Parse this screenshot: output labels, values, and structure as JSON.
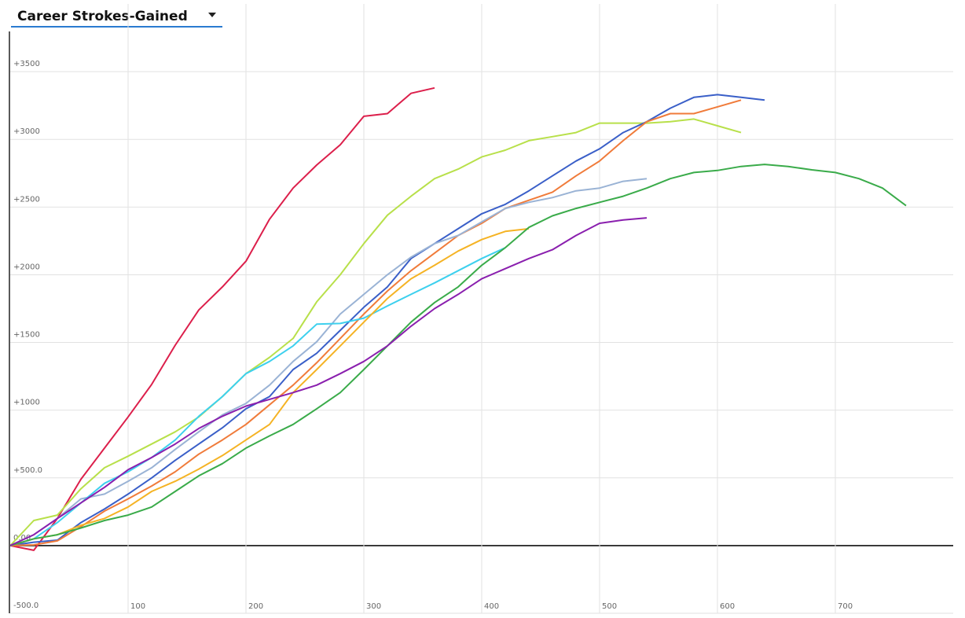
{
  "chart_data": {
    "type": "line",
    "title": "Career Strokes-Gained",
    "xlim": [
      0,
      800
    ],
    "ylim": [
      -500,
      4000
    ],
    "xticks": [
      100,
      200,
      300,
      400,
      500,
      600,
      700
    ],
    "yticks": [
      {
        "value": -500,
        "label": "-500.0"
      },
      {
        "value": 0,
        "label": "0.00"
      },
      {
        "value": 500,
        "label": "+500.0"
      },
      {
        "value": 1000,
        "label": "+1000"
      },
      {
        "value": 1500,
        "label": "+1500"
      },
      {
        "value": 2000,
        "label": "+2000"
      },
      {
        "value": 2500,
        "label": "+2500"
      },
      {
        "value": 3000,
        "label": "+3000"
      },
      {
        "value": 3500,
        "label": "+3500"
      }
    ],
    "grid": true,
    "x": [
      0,
      20,
      40,
      60,
      80,
      100,
      120,
      140,
      160,
      180,
      200,
      220,
      240,
      260,
      280,
      300,
      320,
      340,
      360,
      380,
      400,
      420,
      440,
      460,
      480,
      500,
      520,
      540,
      560,
      580,
      600,
      620,
      640,
      660,
      680,
      700,
      720,
      740,
      760
    ],
    "series": [
      {
        "color": "#dc1f4b",
        "values": [
          0,
          -35,
          200,
          490,
          720,
          950,
          1190,
          1480,
          1740,
          1910,
          2100,
          2410,
          2640,
          2810,
          2960,
          3170,
          3190,
          3340,
          3380,
          null,
          null,
          null,
          null,
          null,
          null,
          null,
          null,
          null,
          null,
          null,
          null,
          null,
          null,
          null,
          null,
          null,
          null,
          null,
          null
        ]
      },
      {
        "color": "#b8e04a",
        "values": [
          0,
          185,
          225,
          420,
          575,
          660,
          750,
          840,
          950,
          1100,
          1270,
          1390,
          1530,
          1800,
          2000,
          2230,
          2440,
          2580,
          2710,
          2780,
          2870,
          2920,
          2990,
          3020,
          3050,
          3120,
          3120,
          3120,
          3130,
          3150,
          3100,
          3050,
          null,
          null,
          null,
          null,
          null,
          null,
          null
        ]
      },
      {
        "color": "#3a5fc8",
        "values": [
          0,
          25,
          40,
          170,
          270,
          380,
          500,
          630,
          750,
          870,
          1010,
          1100,
          1300,
          1420,
          1590,
          1760,
          1910,
          2120,
          2230,
          2340,
          2450,
          2520,
          2620,
          2730,
          2840,
          2930,
          3050,
          3130,
          3230,
          3310,
          3330,
          3310,
          3290,
          null,
          null,
          null,
          null,
          null,
          null
        ]
      },
      {
        "color": "#f07b3a",
        "values": [
          0,
          5,
          35,
          140,
          255,
          345,
          440,
          545,
          675,
          780,
          895,
          1040,
          1185,
          1350,
          1530,
          1710,
          1880,
          2030,
          2160,
          2290,
          2380,
          2490,
          2550,
          2610,
          2730,
          2840,
          2990,
          3130,
          3190,
          3190,
          3240,
          3290,
          null,
          null,
          null,
          null,
          null,
          null,
          null
        ]
      },
      {
        "color": "#9ab3d5",
        "values": [
          0,
          80,
          200,
          345,
          380,
          475,
          575,
          710,
          840,
          965,
          1050,
          1185,
          1360,
          1505,
          1710,
          1855,
          2000,
          2130,
          2230,
          2290,
          2390,
          2490,
          2535,
          2570,
          2620,
          2640,
          2690,
          2710,
          null,
          null,
          null,
          null,
          null,
          null,
          null,
          null,
          null,
          null,
          null
        ]
      },
      {
        "color": "#3dd0ee",
        "values": [
          0,
          50,
          170,
          315,
          460,
          545,
          650,
          780,
          955,
          1100,
          1270,
          1360,
          1475,
          1635,
          1640,
          1680,
          1770,
          1855,
          1940,
          2030,
          2120,
          2200,
          null,
          null,
          null,
          null,
          null,
          null,
          null,
          null,
          null,
          null,
          null,
          null,
          null,
          null,
          null,
          null,
          null
        ]
      },
      {
        "color": "#f5b324",
        "values": [
          0,
          50,
          80,
          150,
          200,
          285,
          400,
          475,
          565,
          665,
          780,
          895,
          1130,
          1300,
          1475,
          1650,
          1825,
          1970,
          2070,
          2175,
          2260,
          2320,
          2340,
          null,
          null,
          null,
          null,
          null,
          null,
          null,
          null,
          null,
          null,
          null,
          null,
          null,
          null,
          null,
          null
        ]
      },
      {
        "color": "#3aab4a",
        "values": [
          0,
          50,
          80,
          130,
          185,
          225,
          285,
          400,
          515,
          605,
          720,
          810,
          895,
          1010,
          1130,
          1300,
          1475,
          1650,
          1795,
          1910,
          2070,
          2200,
          2350,
          2435,
          2490,
          2535,
          2580,
          2640,
          2710,
          2755,
          2770,
          2800,
          2815,
          2800,
          2775,
          2755,
          2710,
          2640,
          2510
        ]
      },
      {
        "color": "#8a1fae",
        "values": [
          0,
          80,
          200,
          315,
          430,
          560,
          650,
          750,
          865,
          955,
          1030,
          1080,
          1130,
          1185,
          1270,
          1360,
          1475,
          1620,
          1750,
          1855,
          1970,
          2045,
          2120,
          2185,
          2290,
          2380,
          2405,
          2420,
          null,
          null,
          null,
          null,
          null,
          null,
          null,
          null,
          null,
          null,
          null
        ]
      }
    ]
  }
}
